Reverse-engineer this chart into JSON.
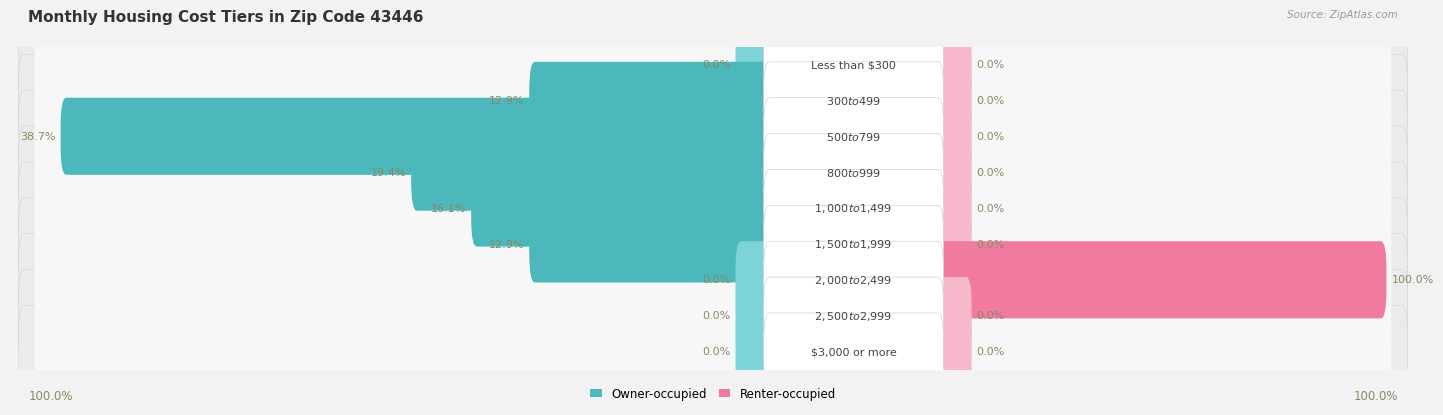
{
  "title": "Monthly Housing Cost Tiers in Zip Code 43446",
  "source": "Source: ZipAtlas.com",
  "categories": [
    "Less than $300",
    "$300 to $499",
    "$500 to $799",
    "$800 to $999",
    "$1,000 to $1,499",
    "$1,500 to $1,999",
    "$2,000 to $2,499",
    "$2,500 to $2,999",
    "$3,000 or more"
  ],
  "owner_pct": [
    0.0,
    12.9,
    38.7,
    19.4,
    16.1,
    12.9,
    0.0,
    0.0,
    0.0
  ],
  "renter_pct": [
    0.0,
    0.0,
    0.0,
    0.0,
    0.0,
    0.0,
    100.0,
    0.0,
    0.0
  ],
  "owner_color": "#4db8bc",
  "owner_color_light": "#7dd4d6",
  "renter_color": "#f07b9e",
  "renter_color_light": "#f8b8cb",
  "label_color": "#888866",
  "bg_color": "#f2f2f2",
  "row_bg_color": "#e8e8e8",
  "row_inner_bg": "#f9f9f9",
  "title_color": "#333333",
  "title_fontsize": 11,
  "axis_label_fontsize": 8.5,
  "bar_label_fontsize": 8,
  "category_fontsize": 8,
  "legend_fontsize": 8.5,
  "source_fontsize": 7.5,
  "max_pct": 100.0,
  "left_axis_label": "100.0%",
  "right_axis_label": "100.0%",
  "figsize": [
    14.06,
    4.14
  ],
  "dpi": 100
}
